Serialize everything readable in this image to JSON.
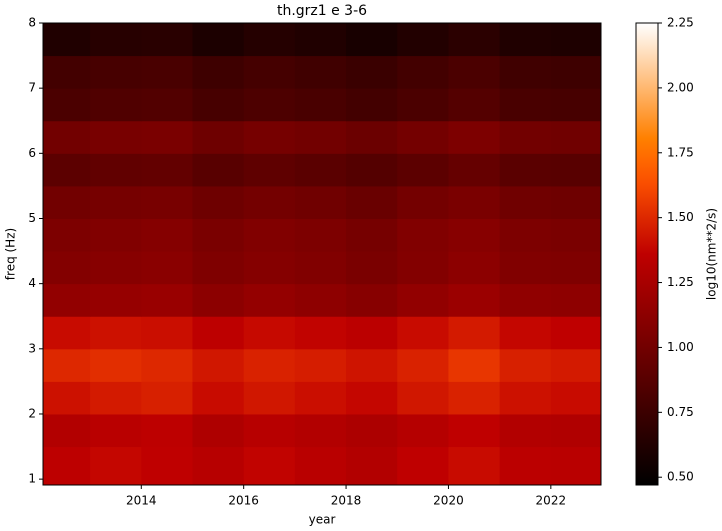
{
  "chart_data": {
    "type": "heatmap",
    "title": "th.grz1 e 3-6",
    "xlabel": "year",
    "ylabel": "freq (Hz)",
    "colorbar_label": "log10(nm**2/s)",
    "colormap": "gist_heat",
    "x": [
      2012.08,
      2013,
      2014,
      2015,
      2016,
      2017,
      2018,
      2019,
      2020,
      2021,
      2022,
      2022.98
    ],
    "y": [
      0.91,
      1.5,
      2,
      2.5,
      3,
      3.5,
      4,
      4.5,
      5,
      5.5,
      6,
      6.5,
      7,
      7.5,
      8
    ],
    "z": [
      [
        1.35,
        1.38,
        1.36,
        1.32,
        1.37,
        1.33,
        1.3,
        1.36,
        1.4,
        1.34,
        1.33
      ],
      [
        1.3,
        1.33,
        1.35,
        1.28,
        1.32,
        1.3,
        1.27,
        1.31,
        1.36,
        1.3,
        1.29
      ],
      [
        1.42,
        1.45,
        1.47,
        1.4,
        1.44,
        1.41,
        1.38,
        1.44,
        1.48,
        1.42,
        1.4
      ],
      [
        1.5,
        1.52,
        1.5,
        1.44,
        1.48,
        1.46,
        1.43,
        1.48,
        1.55,
        1.47,
        1.45
      ],
      [
        1.4,
        1.42,
        1.41,
        1.35,
        1.39,
        1.37,
        1.34,
        1.4,
        1.45,
        1.38,
        1.36
      ],
      [
        1.15,
        1.17,
        1.18,
        1.12,
        1.16,
        1.13,
        1.1,
        1.15,
        1.19,
        1.14,
        1.13
      ],
      [
        1.08,
        1.1,
        1.11,
        1.06,
        1.09,
        1.07,
        1.04,
        1.08,
        1.12,
        1.07,
        1.06
      ],
      [
        1.05,
        1.07,
        1.09,
        1.04,
        1.07,
        1.05,
        1.02,
        1.07,
        1.1,
        1.05,
        1.04
      ],
      [
        1.0,
        1.02,
        1.03,
        0.98,
        1.01,
        0.99,
        0.96,
        1.01,
        1.04,
        0.99,
        0.98
      ],
      [
        0.9,
        0.92,
        0.93,
        0.88,
        0.91,
        0.89,
        0.86,
        0.9,
        0.94,
        0.89,
        0.88
      ],
      [
        1.0,
        1.03,
        1.04,
        0.98,
        1.02,
        1.0,
        0.97,
        1.01,
        1.05,
        1.0,
        0.99
      ],
      [
        0.82,
        0.84,
        0.85,
        0.8,
        0.83,
        0.81,
        0.78,
        0.82,
        0.86,
        0.81,
        0.8
      ],
      [
        0.78,
        0.8,
        0.81,
        0.76,
        0.79,
        0.77,
        0.74,
        0.78,
        0.82,
        0.77,
        0.76
      ],
      [
        0.62,
        0.65,
        0.66,
        0.6,
        0.64,
        0.62,
        0.58,
        0.63,
        0.67,
        0.62,
        0.61
      ]
    ],
    "xlim": [
      2012.08,
      2022.98
    ],
    "xticks": [
      2014,
      2016,
      2018,
      2020,
      2022
    ],
    "ylim": [
      0.91,
      8
    ],
    "yticks": [
      1,
      2,
      3,
      4,
      5,
      6,
      7,
      8
    ],
    "clim": [
      0.47,
      2.25
    ],
    "cticks": [
      {
        "value": 0.5,
        "label": "0.50"
      },
      0.75,
      {
        "value": 1.0,
        "label": "1.00"
      },
      1.25,
      {
        "value": 1.5,
        "label": "1.50"
      },
      1.75,
      {
        "value": 2.0,
        "label": "2.00"
      },
      2.25
    ]
  }
}
